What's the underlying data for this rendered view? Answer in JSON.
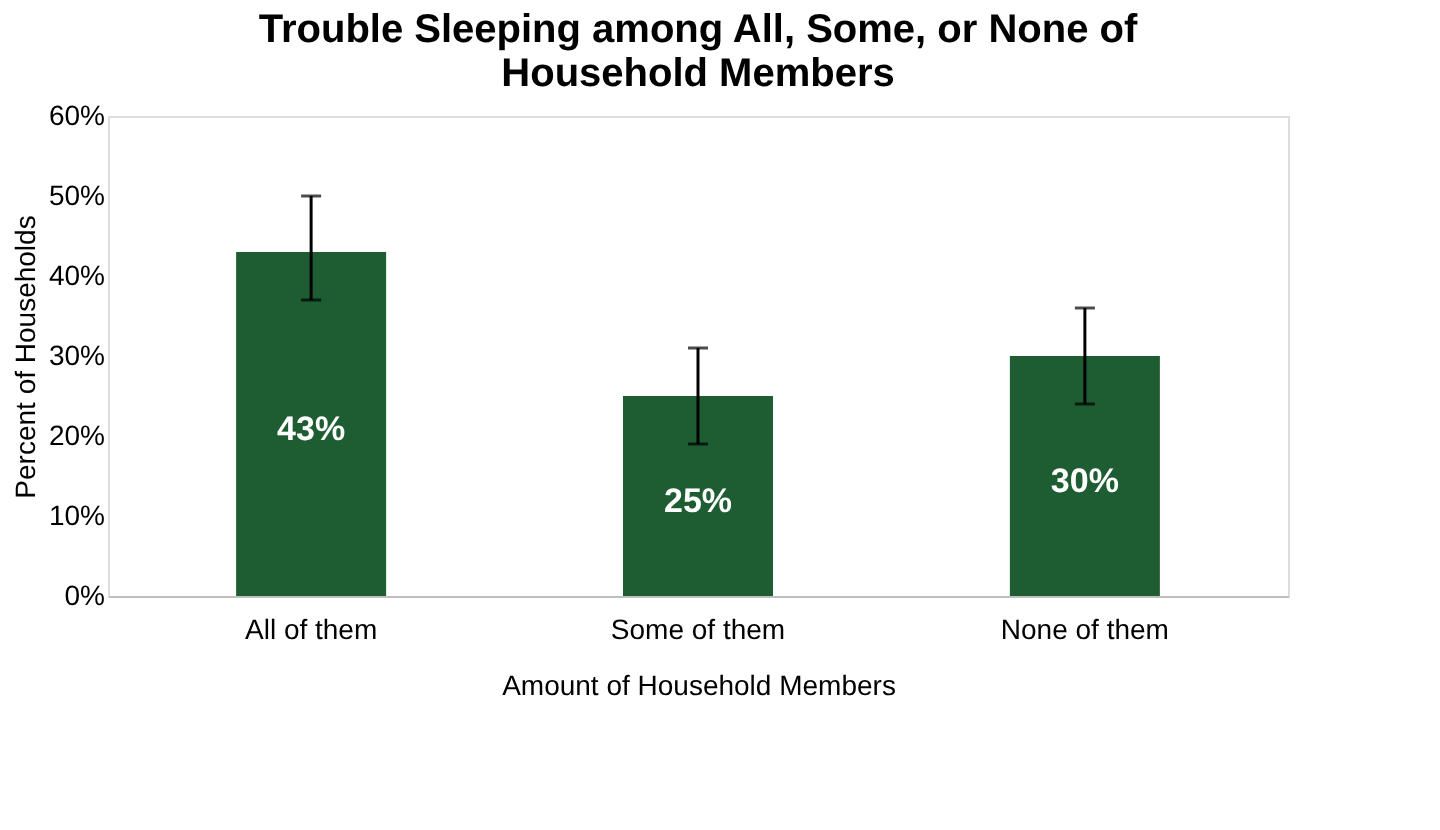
{
  "chart_data": {
    "type": "bar",
    "title": "Trouble Sleeping among All, Some, or None of Household Members",
    "xlabel": "Amount of Household Members",
    "ylabel": "Percent of Households",
    "categories": [
      "All of them",
      "Some of them",
      "None of them"
    ],
    "values": [
      43,
      25,
      30
    ],
    "color": "#1e5c32",
    "errors": [
      [
        37,
        50
      ],
      [
        19,
        31
      ],
      [
        24,
        36
      ]
    ],
    "value_labels": [
      "43%",
      "25%",
      "30%"
    ],
    "ylim": [
      0,
      60
    ],
    "yticks": [
      {
        "value": 0,
        "label": "0%"
      },
      {
        "value": 10,
        "label": "10%"
      },
      {
        "value": 20,
        "label": "20%"
      },
      {
        "value": 30,
        "label": "30%"
      },
      {
        "value": 40,
        "label": "40%"
      },
      {
        "value": 50,
        "label": "50%"
      },
      {
        "value": 60,
        "label": "60%"
      }
    ],
    "grid": false
  }
}
